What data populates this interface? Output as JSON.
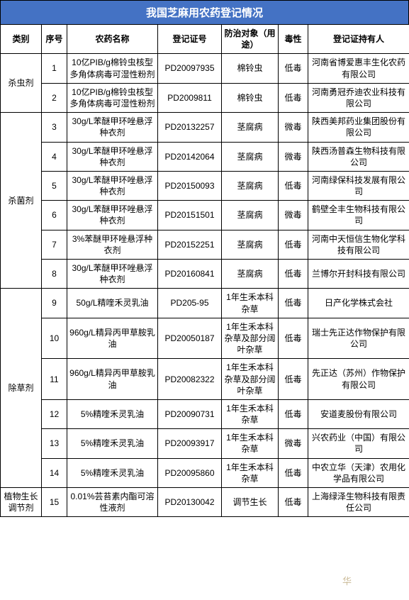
{
  "title": "我国芝麻用农药登记情况",
  "headers": {
    "category": "类别",
    "index": "序号",
    "name": "农药名称",
    "regno": "登记证号",
    "target": "防治对象（用途）",
    "toxicity": "毒性",
    "holder": "登记证持有人"
  },
  "groups": [
    {
      "category": "杀虫剂",
      "rows": [
        {
          "idx": "1",
          "name": "10亿PIB/g棉铃虫核型多角体病毒可湿性粉剂",
          "regno": "PD20097935",
          "target": "棉铃虫",
          "tox": "低毒",
          "holder": "河南省博爱惠丰生化农药有限公司"
        },
        {
          "idx": "2",
          "name": "10亿PIB/g棉铃虫核型多角体病毒可湿性粉剂",
          "regno": "PD2009811",
          "target": "棉铃虫",
          "tox": "低毒",
          "holder": "河南勇冠乔迪农业科技有限公司"
        }
      ]
    },
    {
      "category": "杀菌剂",
      "rows": [
        {
          "idx": "3",
          "name": "30g/L苯醚甲环唑悬浮种衣剂",
          "regno": "PD20132257",
          "target": "茎腐病",
          "tox": "微毒",
          "holder": "陕西美邦药业集团股份有限公司"
        },
        {
          "idx": "4",
          "name": "30g/L苯醚甲环唑悬浮种衣剂",
          "regno": "PD20142064",
          "target": "茎腐病",
          "tox": "微毒",
          "holder": "陕西汤普森生物科技有限公司"
        },
        {
          "idx": "5",
          "name": "30g/L苯醚甲环唑悬浮种衣剂",
          "regno": "PD20150093",
          "target": "茎腐病",
          "tox": "低毒",
          "holder": "河南绿保科技发展有限公司"
        },
        {
          "idx": "6",
          "name": "30g/L苯醚甲环唑悬浮种衣剂",
          "regno": "PD20151501",
          "target": "茎腐病",
          "tox": "微毒",
          "holder": "鹤壁全丰生物科技有限公司"
        },
        {
          "idx": "7",
          "name": "3%苯醚甲环唑悬浮种衣剂",
          "regno": "PD20152251",
          "target": "茎腐病",
          "tox": "低毒",
          "holder": "河南中天恒信生物化学科技有限公司"
        },
        {
          "idx": "8",
          "name": "30g/L苯醚甲环唑悬浮种衣剂",
          "regno": "PD20160841",
          "target": "茎腐病",
          "tox": "低毒",
          "holder": "兰博尔开封科技有限公司"
        }
      ]
    },
    {
      "category": "除草剂",
      "rows": [
        {
          "idx": "9",
          "name": "50g/L精喹禾灵乳油",
          "regno": "PD205-95",
          "target": "1年生禾本科杂草",
          "tox": "低毒",
          "holder": "日产化学株式会社"
        },
        {
          "idx": "10",
          "name": "960g/L精异丙甲草胺乳油",
          "regno": "PD20050187",
          "target": "1年生禾本科杂草及部分阔叶杂草",
          "tox": "低毒",
          "holder": "瑞士先正达作物保护有限公司"
        },
        {
          "idx": "11",
          "name": "960g/L精异丙甲草胺乳油",
          "regno": "PD20082322",
          "target": "1年生禾本科杂草及部分阔叶杂草",
          "tox": "低毒",
          "holder": "先正达（苏州）作物保护有限公司"
        },
        {
          "idx": "12",
          "name": "5%精喹禾灵乳油",
          "regno": "PD20090731",
          "target": "1年生禾本科杂草",
          "tox": "低毒",
          "holder": "安道麦股份有限公司"
        },
        {
          "idx": "13",
          "name": "5%精喹禾灵乳油",
          "regno": "PD20093917",
          "target": "1年生禾本科杂草",
          "tox": "微毒",
          "holder": "兴农药业（中国）有限公司"
        },
        {
          "idx": "14",
          "name": "5%精喹禾灵乳油",
          "regno": "PD20095860",
          "target": "1年生禾本科杂草",
          "tox": "低毒",
          "holder": "中农立华（天津）农用化学品有限公司"
        }
      ]
    },
    {
      "category": "植物生长调节剂",
      "rows": [
        {
          "idx": "15",
          "name": "0.01%芸苔素内酯可溶性液剂",
          "regno": "PD20130042",
          "target": "调节生长",
          "tox": "低毒",
          "holder": "上海绿泽生物科技有限责任公司"
        }
      ]
    }
  ],
  "watermark": "华"
}
